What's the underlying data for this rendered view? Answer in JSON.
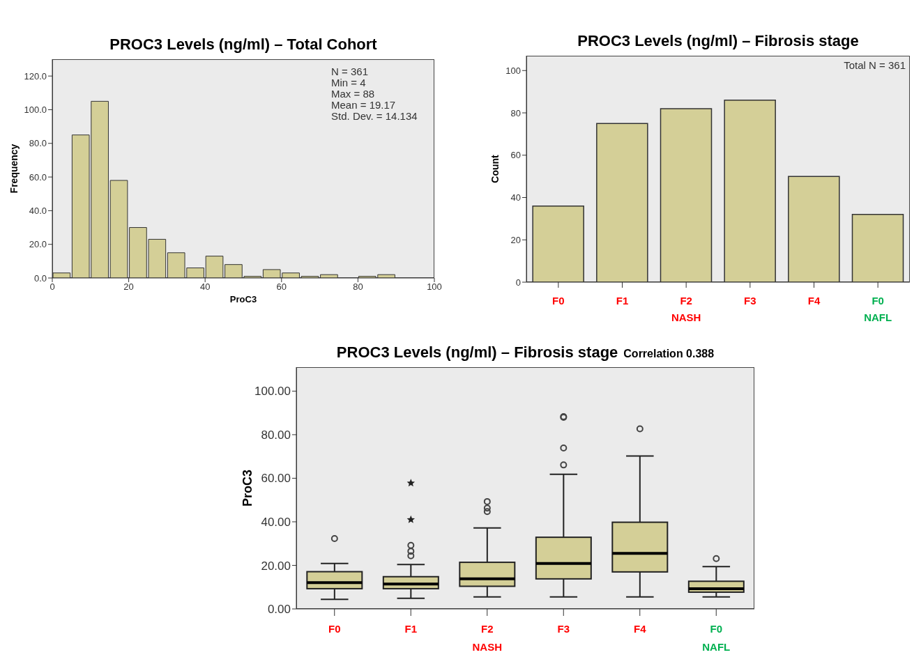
{
  "chart_data": [
    {
      "type": "histogram",
      "title": "PROC3 Levels (ng/ml) – Total Cohort",
      "xlabel": "ProC3",
      "ylabel": "Frequency",
      "color": "#d4cf97",
      "bins": [
        0,
        5,
        10,
        15,
        20,
        25,
        30,
        35,
        40,
        45,
        50,
        55,
        60,
        65,
        70,
        75,
        80,
        85,
        90
      ],
      "values": [
        3,
        85,
        105,
        58,
        30,
        23,
        15,
        6,
        13,
        8,
        1,
        5,
        3,
        1,
        2,
        0,
        1,
        2
      ],
      "xlim": [
        0,
        100
      ],
      "xticks": [
        0,
        20,
        40,
        60,
        80,
        100
      ],
      "ylim": [
        0,
        130
      ],
      "yticks": [
        {
          "value": 0,
          "label": "0.0"
        },
        {
          "value": 20,
          "label": "20.0"
        },
        {
          "value": 40,
          "label": "40.0"
        },
        {
          "value": 60,
          "label": "60.0"
        },
        {
          "value": 80,
          "label": "80.0"
        },
        {
          "value": 100,
          "label": "100.0"
        },
        {
          "value": 120,
          "label": "120.0"
        }
      ],
      "annotations": [
        "N = 361",
        "Min = 4",
        "Max = 88",
        "Mean = 19.17",
        "Std. Dev. = 14.134"
      ]
    },
    {
      "type": "bar",
      "title": "PROC3 Levels (ng/ml) – Fibrosis stage",
      "ylabel": "Count",
      "color": "#d4cf97",
      "categories": [
        "F0",
        "F1",
        "F2",
        "F3",
        "F4",
        "F0"
      ],
      "values": [
        36,
        75,
        82,
        86,
        50,
        32
      ],
      "ylim": [
        0,
        107
      ],
      "yticks": [
        0,
        20,
        40,
        60,
        80,
        100
      ],
      "annotations": [
        "Total N = 361",
        "NASH",
        "NAFL"
      ]
    },
    {
      "type": "box",
      "title": "PROC3 Levels (ng/ml) – Fibrosis stage",
      "subtitle": "Correlation 0.388",
      "ylabel": "ProC3",
      "color": "#d4cf97",
      "categories": [
        "F0",
        "F1",
        "F2",
        "F3",
        "F4",
        "F0"
      ],
      "boxes": [
        {
          "low": 4.4,
          "q1": 9.3,
          "median": 12.1,
          "q3": 17.1,
          "high": 20.9,
          "outliers": [
            32.3
          ]
        },
        {
          "low": 4.9,
          "q1": 9.3,
          "median": 11.4,
          "q3": 14.8,
          "high": 20.4,
          "outliers": [
            24.4,
            26.5,
            29.2,
            41,
            57.8
          ]
        },
        {
          "low": 5.5,
          "q1": 10.4,
          "median": 13.8,
          "q3": 21.4,
          "high": 37.2,
          "outliers": [
            44.7,
            46.3,
            49.3
          ]
        },
        {
          "low": 5.5,
          "q1": 13.8,
          "median": 20.9,
          "q3": 32.9,
          "high": 61.8,
          "outliers": [
            66.1,
            73.9,
            88.0,
            88.3
          ]
        },
        {
          "low": 5.5,
          "q1": 17.0,
          "median": 25.5,
          "q3": 39.8,
          "high": 70.2,
          "outliers": [
            82.7
          ]
        },
        {
          "low": 5.5,
          "q1": 7.7,
          "median": 9.3,
          "q3": 12.7,
          "high": 19.4,
          "outliers": [
            23.1
          ]
        }
      ],
      "ylim": [
        0,
        111
      ],
      "yticks": [
        {
          "value": 0,
          "label": "0.00"
        },
        {
          "value": 20,
          "label": "20.00"
        },
        {
          "value": 40,
          "label": "40.00"
        },
        {
          "value": 60,
          "label": "60.00"
        },
        {
          "value": 80,
          "label": "80.00"
        },
        {
          "value": 100,
          "label": "100.00"
        }
      ],
      "annotations": [
        "NASH",
        "NAFL"
      ]
    }
  ]
}
